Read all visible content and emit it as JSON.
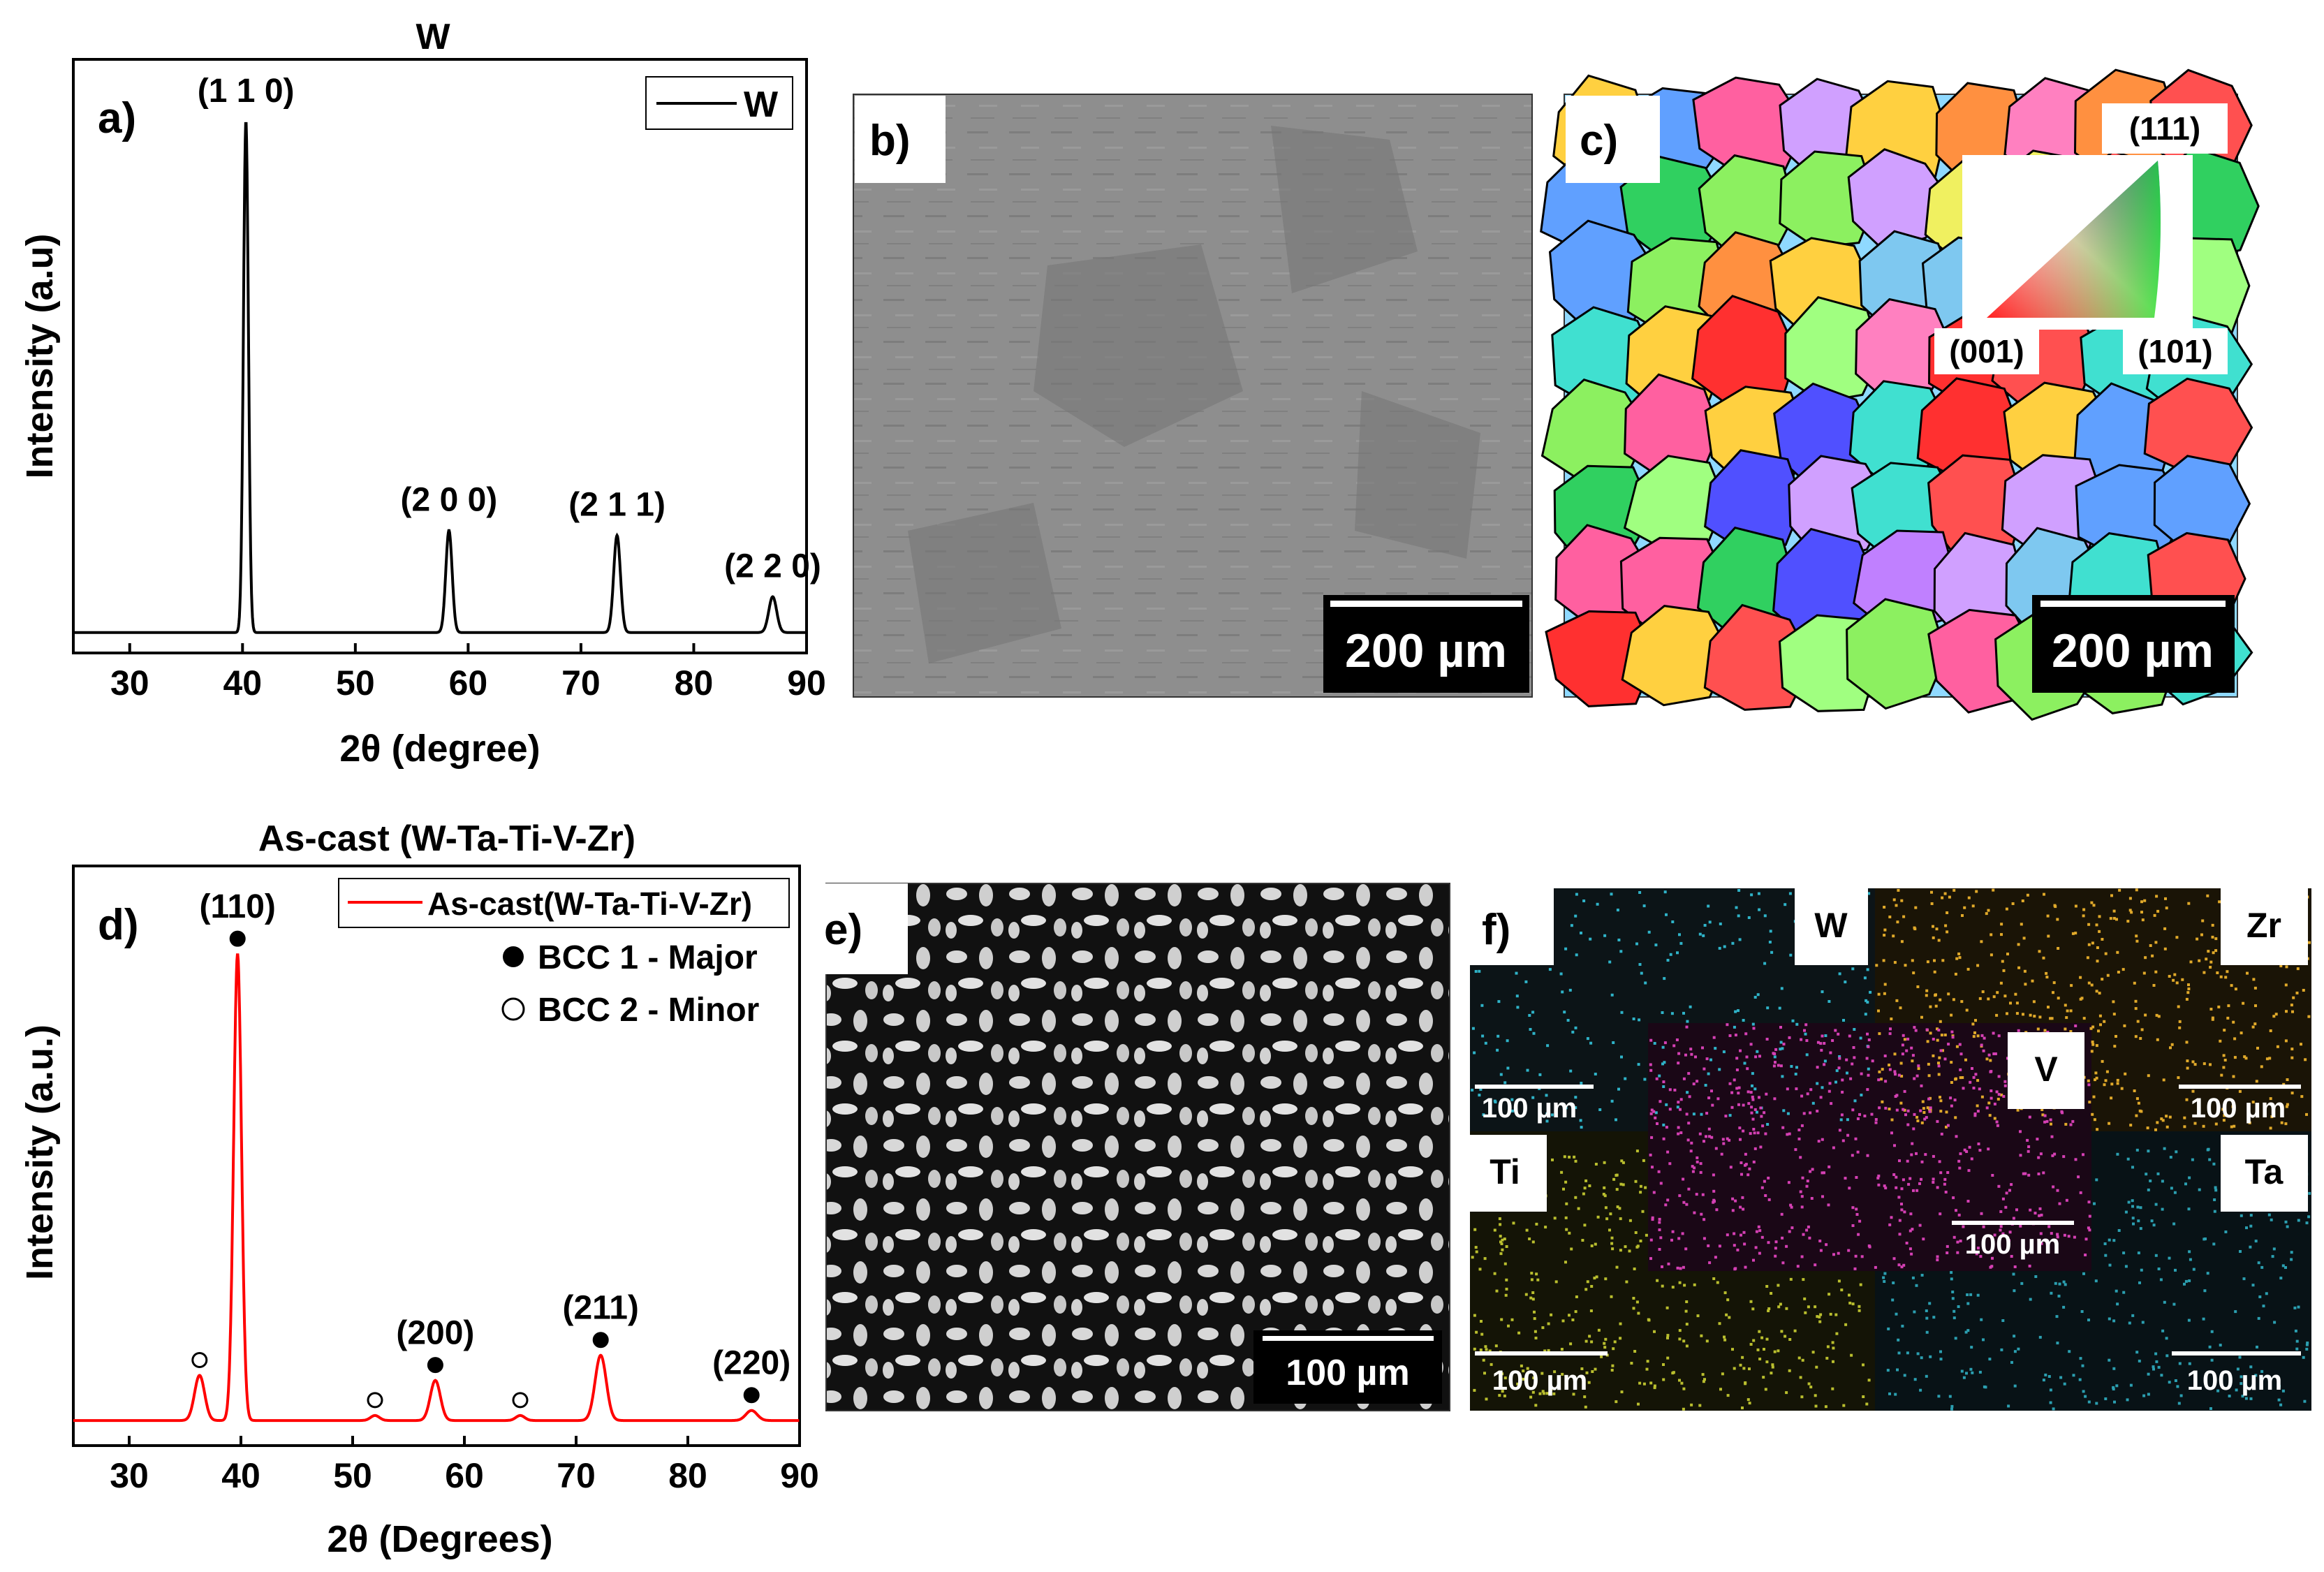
{
  "panel_labels": {
    "a": "a)",
    "b": "b)",
    "c": "c)",
    "d": "d)",
    "e": "e)",
    "f": "f)"
  },
  "colors": {
    "xrd_a": "#000000",
    "xrd_d": "#ff0000",
    "bcc_major": "#000000",
    "bcc_minor": "#ffffff",
    "map_w": "#2fb3c8",
    "map_zr": "#e0a92a",
    "map_v": "#d540b4",
    "map_ti": "#b9be2e",
    "map_ta": "#2b9fb0"
  },
  "chart_data": [
    {
      "id": "a",
      "type": "line",
      "title": "W",
      "xlabel": "2θ (degree)",
      "ylabel": "Intensity (a.u)",
      "xlim": [
        25,
        90
      ],
      "xticks": [
        30,
        40,
        50,
        60,
        70,
        80,
        90
      ],
      "ylim": [
        0,
        1.1
      ],
      "legend": {
        "position": "top-right",
        "entries": [
          "W"
        ]
      },
      "series": [
        {
          "name": "W",
          "baseline": 0.04,
          "peaks": [
            {
              "x": 40.3,
              "height": 1.0,
              "width": 0.22,
              "label": "(1 1 0)"
            },
            {
              "x": 58.3,
              "height": 0.2,
              "width": 0.28,
              "label": "(2 0 0)"
            },
            {
              "x": 73.2,
              "height": 0.19,
              "width": 0.3,
              "label": "(2 1 1)"
            },
            {
              "x": 87.0,
              "height": 0.07,
              "width": 0.35,
              "label": "(2 2 0)"
            }
          ]
        }
      ]
    },
    {
      "id": "d",
      "type": "line",
      "title": "As-cast (W-Ta-Ti-V-Zr)",
      "xlabel": "2θ (Degrees)",
      "ylabel": "Intensity (a.u.)",
      "xlim": [
        25,
        90
      ],
      "xticks": [
        30,
        40,
        50,
        60,
        70,
        80,
        90
      ],
      "ylim": [
        0,
        1.1
      ],
      "legend": {
        "position": "top-right",
        "entries": [
          "As-cast(W-Ta-Ti-V-Zr)",
          "BCC 1 - Major",
          "BCC 2 - Minor"
        ]
      },
      "series": [
        {
          "name": "As-cast(W-Ta-Ti-V-Zr)",
          "baseline": 0.05,
          "peaks": [
            {
              "x": 36.3,
              "height": 0.09,
              "width": 0.45,
              "label": "",
              "phase": "minor"
            },
            {
              "x": 39.7,
              "height": 0.93,
              "width": 0.35,
              "label": "(110)",
              "phase": "major"
            },
            {
              "x": 52.0,
              "height": 0.01,
              "width": 0.4,
              "label": "",
              "phase": "minor"
            },
            {
              "x": 57.4,
              "height": 0.08,
              "width": 0.45,
              "label": "(200)",
              "phase": "major"
            },
            {
              "x": 65.0,
              "height": 0.01,
              "width": 0.4,
              "label": "",
              "phase": "minor"
            },
            {
              "x": 72.2,
              "height": 0.13,
              "width": 0.5,
              "label": "(211)",
              "phase": "major"
            },
            {
              "x": 85.7,
              "height": 0.02,
              "width": 0.5,
              "label": "(220)",
              "phase": "major"
            }
          ]
        }
      ]
    }
  ],
  "micrographs": {
    "b": {
      "scale_bar": "200 µm"
    },
    "c": {
      "scale_bar": "200 µm",
      "ipf": {
        "top": "(111)",
        "left": "(001)",
        "right": "(101)"
      }
    },
    "e": {
      "scale_bar": "100 µm"
    },
    "f": {
      "maps": [
        {
          "element": "W",
          "scale_bar": "100 µm"
        },
        {
          "element": "Zr",
          "scale_bar": "100 µm"
        },
        {
          "element": "V",
          "scale_bar": "100 µm"
        },
        {
          "element": "Ti",
          "scale_bar": "100 µm"
        },
        {
          "element": "Ta",
          "scale_bar": "100 µm"
        }
      ]
    }
  }
}
